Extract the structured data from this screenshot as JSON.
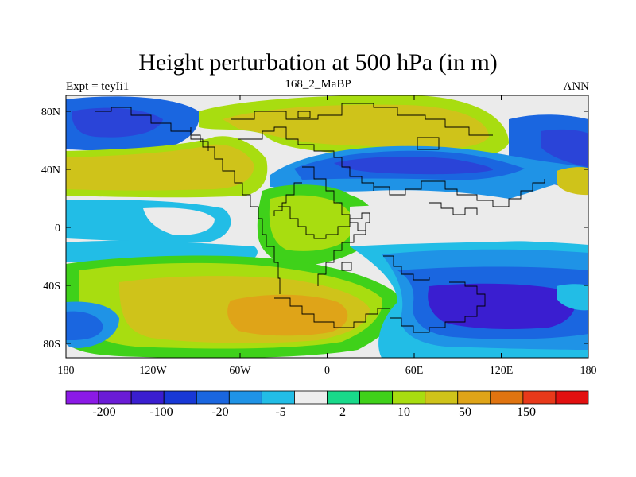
{
  "title": "Height perturbation at 500 hPa (in m)",
  "subtitle_left": "Expt = teyIi1",
  "subtitle_center": "168_2_MaBP",
  "subtitle_right": "ANN",
  "axes": {
    "x_ticks": [
      "180",
      "120W",
      "60W",
      "0",
      "60E",
      "120E",
      "180"
    ],
    "y_ticks": [
      "80N",
      "40N",
      "0",
      "40S",
      "80S"
    ]
  },
  "colorbar": {
    "colors": [
      "#8b1ae6",
      "#6a1cd6",
      "#3a1ed0",
      "#1838d6",
      "#1a66e0",
      "#1f93e6",
      "#22bde6",
      "#eeeeee",
      "#19d98a",
      "#3fd11a",
      "#a8dd10",
      "#cfc31a",
      "#dfa418",
      "#e07410",
      "#e8391a",
      "#e21010"
    ],
    "labels": [
      "-200",
      "-100",
      "-20",
      "-5",
      "2",
      "10",
      "50",
      "150"
    ]
  },
  "palette": {
    "ocean_neutral": "#ebebeb",
    "deep_blue": "#2a44d8",
    "light_blue": "#22bde6",
    "green": "#3fd11a",
    "yellow_green": "#a8dd10",
    "olive": "#cfc31a",
    "orange": "#dfa418",
    "coastline": "#000000"
  }
}
